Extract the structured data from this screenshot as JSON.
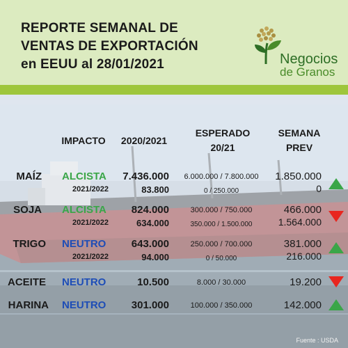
{
  "title": {
    "line1": "REPORTE SEMANAL DE",
    "line2": "VENTAS DE EXPORTACIÓN",
    "line3": "en EEUU al 28/01/2021"
  },
  "logo": {
    "line1": "Negocios",
    "line2": "de Granos"
  },
  "headers": {
    "impacto": "IMPACTO",
    "year": "2020/2021",
    "esperado_l1": "ESPERADO",
    "esperado_l2": "20/21",
    "semana_l1": "SEMANA",
    "semana_l2": "PREV"
  },
  "rows": [
    {
      "product": "MAÍZ",
      "impact": "ALCISTA",
      "value": "7.436.000",
      "sub_label": "2021/2022",
      "sub_value": "83.800",
      "expected": "6.000.000 / 7.800.000",
      "expected2": "0 / 250.000",
      "prev": "1.850.000",
      "prev2": "0",
      "trend": "up"
    },
    {
      "product": "SOJA",
      "impact": "ALCISTA",
      "value": "824.000",
      "sub_label": "2021/2022",
      "sub_value": "634.000",
      "expected": "300.000 / 750.000",
      "expected2": "350.000 / 1.500.000",
      "prev": "466.000",
      "prev2": "1.564.000",
      "trend": "down"
    },
    {
      "product": "TRIGO",
      "impact": "NEUTRO",
      "value": "643.000",
      "sub_label": "2021/2022",
      "sub_value": "94.000",
      "expected": "250.000 / 700.000",
      "expected2": "0 / 50.000",
      "prev": "381.000",
      "prev2": "216.000",
      "trend": "up"
    },
    {
      "product": "ACEITE",
      "impact": "NEUTRO",
      "value": "10.500",
      "expected": "8.000 / 30.000",
      "prev": "19.200",
      "trend": "down"
    },
    {
      "product": "HARINA",
      "impact": "NEUTRO",
      "value": "301.000",
      "expected": "100.000 / 350.000",
      "prev": "142.000",
      "trend": "up"
    }
  ],
  "source": "Fuente : USDA",
  "colors": {
    "alcista": "#3aa648",
    "neutro": "#1e4db6",
    "arrow_up": "#3aa648",
    "arrow_down": "#e8261f",
    "header_bg": "#dcebc0",
    "stripe": "#9ec63c"
  }
}
